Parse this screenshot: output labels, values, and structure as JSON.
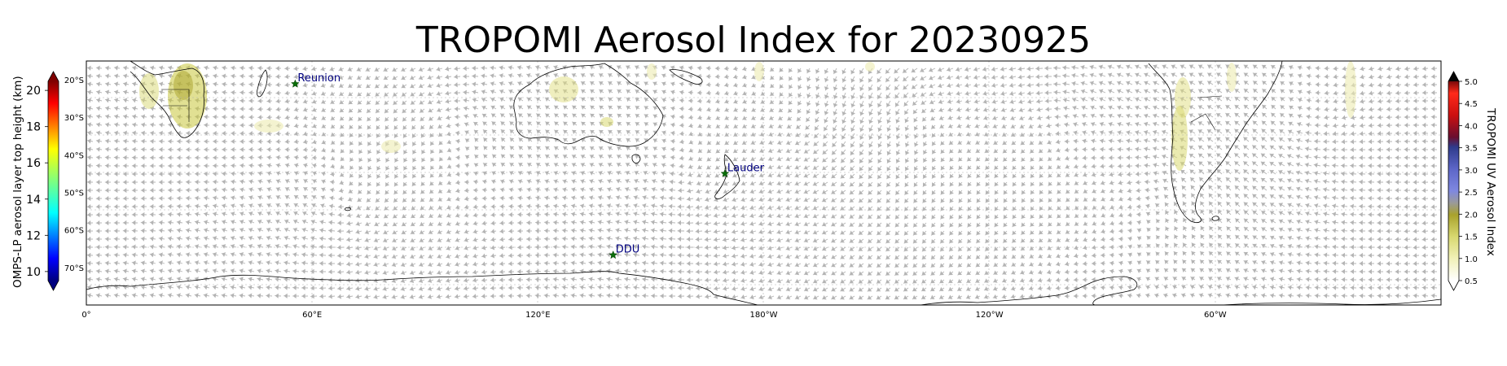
{
  "title": "TROPOMI Aerosol Index for 20230925",
  "left_colorbar": {
    "label": "OMPS-LP aerosol layer top height (km)",
    "ticks": [
      "20",
      "18",
      "16",
      "14",
      "12",
      "10"
    ],
    "range": [
      9.5,
      20.5
    ],
    "colormap": "jet",
    "extend": "both"
  },
  "right_colorbar": {
    "label": "TROPOMI UV Aerosol Index",
    "ticks": [
      "5.0",
      "4.5",
      "4.0",
      "3.5",
      "3.0",
      "2.5",
      "2.0",
      "1.5",
      "1.0",
      "0.5"
    ],
    "range": [
      0.5,
      5.0
    ],
    "extend": "both"
  },
  "latitude_ticks": [
    "20°S",
    "30°S",
    "40°S",
    "50°S",
    "60°S",
    "70°S"
  ],
  "longitude_ticks": [
    "0°",
    "60°E",
    "120°E",
    "180°W",
    "120°W",
    "60°W"
  ],
  "stations": [
    {
      "name": "Reunion",
      "lon": 55.5,
      "lat": -21.1
    },
    {
      "name": "Lauder",
      "lon": 169.7,
      "lat": -45.0
    },
    {
      "name": "DDU",
      "lon": 140.0,
      "lat": -66.7
    }
  ],
  "colors": {
    "station_marker": "#0a6e0a",
    "station_label": "#000080",
    "wind_vectors": "#a8a8a8",
    "coastline": "#000000",
    "aerosol_low": "#e6e69a",
    "aerosol_mid": "#b9b93c"
  },
  "layers": [
    "coastlines",
    "wind-vectors",
    "aerosol-index",
    "stations",
    "gridlines"
  ]
}
